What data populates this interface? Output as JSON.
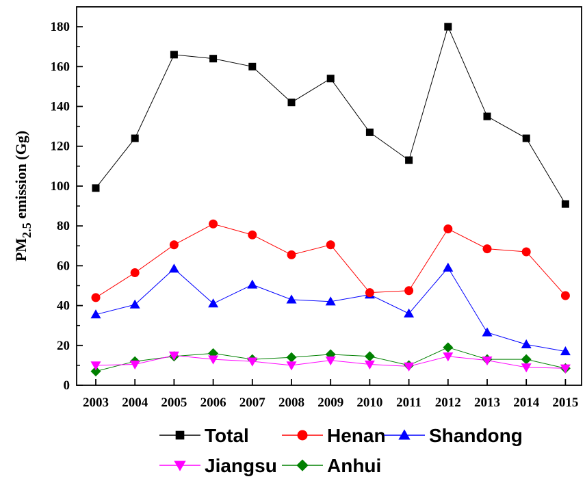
{
  "chart_data": {
    "type": "line",
    "title": "",
    "xlabel": "",
    "ylabel_main": "PM",
    "ylabel_subscript": "2.5",
    "ylabel_rest": " emission (Gg)",
    "x": [
      "2003",
      "2004",
      "2005",
      "2006",
      "2007",
      "2008",
      "2009",
      "2010",
      "2011",
      "2012",
      "2013",
      "2014",
      "2015"
    ],
    "ylim": [
      0,
      190
    ],
    "yticks": [
      0,
      20,
      40,
      60,
      80,
      100,
      120,
      140,
      160,
      180
    ],
    "grid": false,
    "legend_position": "bottom",
    "series": [
      {
        "name": "Total",
        "color": "#000000",
        "marker": "square",
        "values": [
          99,
          124,
          166,
          164,
          160,
          142,
          154,
          127,
          113,
          180,
          135,
          124,
          91
        ]
      },
      {
        "name": "Henan",
        "color": "#ff0000",
        "marker": "circle",
        "values": [
          44,
          56.5,
          70.5,
          81,
          75.5,
          65.5,
          70.5,
          46.5,
          47.5,
          78.5,
          68.5,
          67,
          45
        ]
      },
      {
        "name": "Shandong",
        "color": "#0000ff",
        "marker": "triangle-up",
        "values": [
          35.5,
          40.5,
          58.5,
          41,
          50.5,
          43,
          42,
          45.5,
          36,
          59,
          26.5,
          20.5,
          17
        ]
      },
      {
        "name": "Jiangsu",
        "color": "#ff00ff",
        "marker": "triangle-down",
        "values": [
          10,
          10.5,
          15,
          13,
          12,
          10,
          12.5,
          10.5,
          9.5,
          14.5,
          12.5,
          9,
          8.5
        ]
      },
      {
        "name": "Anhui",
        "color": "#008000",
        "marker": "diamond",
        "values": [
          7,
          12,
          14.5,
          16,
          13,
          14,
          15.5,
          14.5,
          10,
          19,
          13,
          13,
          8.5
        ]
      }
    ]
  }
}
